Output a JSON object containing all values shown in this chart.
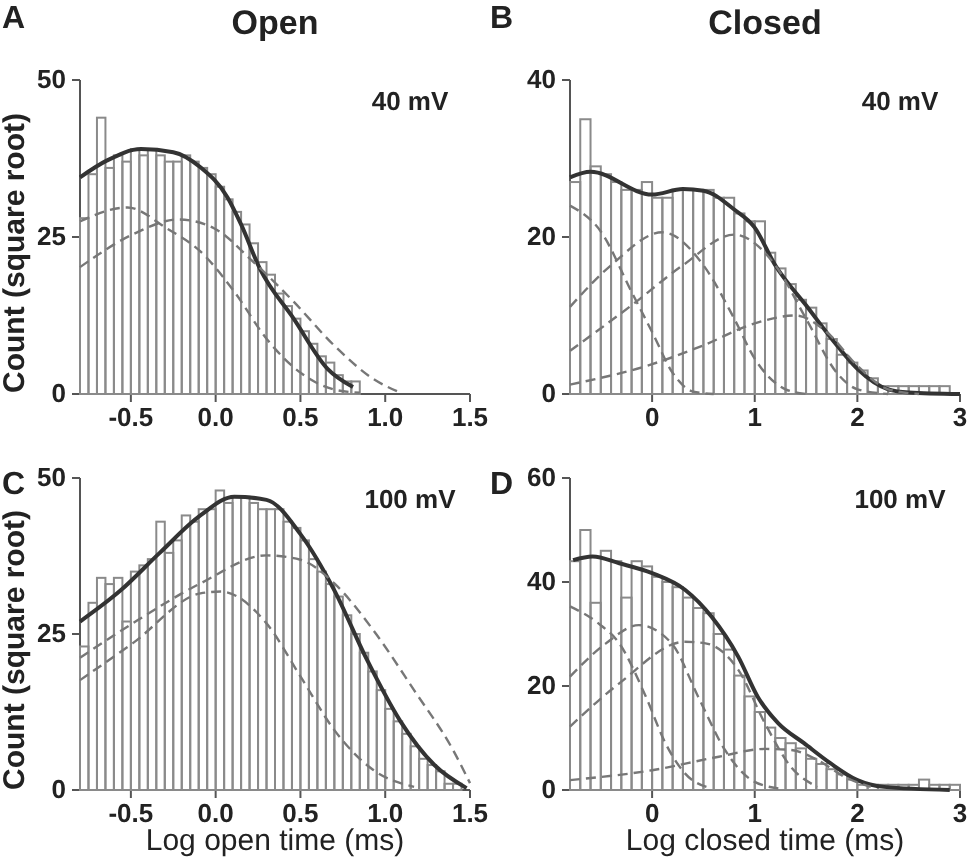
{
  "chart_data": [
    {
      "type": "histogram",
      "title": "Open",
      "ylabel": "Count (square root)",
      "annotations": [
        "A",
        "40 mV"
      ],
      "xlim": [
        -0.8,
        1.5
      ],
      "xticks": [
        {
          "value": -0.5,
          "label": "-0.5"
        },
        {
          "value": 0,
          "label": "0.0"
        },
        {
          "value": 0.5,
          "label": "0.5"
        },
        {
          "value": 1,
          "label": "1.0"
        },
        {
          "value": 1.5,
          "label": "1.5"
        }
      ],
      "ylim": [
        0,
        50
      ],
      "yticks": [
        0,
        25,
        50
      ],
      "color": "#8a8a8a",
      "bins": [
        -0.8,
        -0.75,
        -0.7,
        -0.65,
        -0.6,
        -0.55,
        -0.5,
        -0.45,
        -0.4,
        -0.35,
        -0.3,
        -0.25,
        -0.2,
        -0.15,
        -0.1,
        -0.05,
        0,
        0.05,
        0.1,
        0.15,
        0.2,
        0.25,
        0.3,
        0.35,
        0.4,
        0.45,
        0.5,
        0.55,
        0.6,
        0.65,
        0.7,
        0.75,
        0.8,
        0.85
      ],
      "values": [
        28,
        35,
        44,
        36,
        38,
        37,
        39,
        38,
        39,
        38,
        37,
        37,
        38,
        37,
        36,
        35,
        33,
        31,
        29,
        27,
        24,
        21,
        19,
        16,
        14,
        12,
        10,
        8,
        6,
        5,
        3,
        2,
        2
      ],
      "series": [
        {
          "type": "line",
          "color": "#333333",
          "line_style": "solid",
          "x": [
            -0.8,
            -0.64,
            -0.44,
            -0.25,
            -0.09,
            0.07,
            0.15,
            0.26,
            0.46,
            0.66,
            0.81
          ],
          "values": [
            34.5,
            37.2,
            39,
            38.5,
            36.1,
            31.3,
            27,
            20,
            12,
            4,
            1.1
          ]
        },
        {
          "type": "line",
          "color": "#777777",
          "line_style": "dashed",
          "x": [
            -0.8,
            -0.52,
            -0.29,
            -0.09,
            0.11,
            0.3,
            0.5,
            0.7,
            0.85
          ],
          "values": [
            27.5,
            29.7,
            26.4,
            22.7,
            16.3,
            8.8,
            3.4,
            0.7,
            0.2
          ]
        },
        {
          "type": "line",
          "color": "#777777",
          "line_style": "dashed",
          "x": [
            -0.8,
            -0.49,
            -0.22,
            -0.01,
            0.22,
            0.46,
            0.7,
            0.93,
            1.09
          ],
          "values": [
            20.2,
            25.4,
            27.8,
            26.4,
            21.1,
            14.7,
            7.7,
            2.4,
            0.2
          ]
        }
      ]
    },
    {
      "type": "histogram",
      "title": "Closed",
      "annotations": [
        "B",
        "40 mV"
      ],
      "xlim": [
        -0.8,
        3
      ],
      "xticks": [
        0,
        1,
        2,
        3
      ],
      "ylim": [
        0,
        40
      ],
      "yticks": [
        0,
        20,
        40
      ],
      "color": "#8a8a8a",
      "bins": [
        -0.8,
        -0.7,
        -0.6,
        -0.5,
        -0.4,
        -0.3,
        -0.2,
        -0.1,
        0,
        0.1,
        0.2,
        0.3,
        0.4,
        0.5,
        0.6,
        0.7,
        0.8,
        0.9,
        1,
        1.1,
        1.2,
        1.3,
        1.4,
        1.5,
        1.6,
        1.7,
        1.8,
        1.9,
        2,
        2.1,
        2.2,
        2.3,
        2.4,
        2.5,
        2.6,
        2.7,
        2.8,
        2.9,
        3
      ],
      "values": [
        27,
        35,
        29,
        28,
        27,
        26,
        26,
        27,
        25,
        25,
        26,
        26,
        26,
        26,
        25,
        25,
        23,
        22,
        22,
        18,
        16,
        14,
        12,
        11,
        9,
        7,
        5,
        4,
        3,
        2,
        1,
        1,
        1,
        1,
        1,
        1,
        1,
        0
      ],
      "series": [
        {
          "type": "line",
          "color": "#333333",
          "line_style": "solid",
          "x": [
            -0.8,
            -0.6,
            0,
            0.3,
            0.5,
            0.8,
            1,
            1.2,
            1.5,
            1.8,
            2,
            2.3,
            2.5,
            3
          ],
          "values": [
            27.6,
            28.3,
            25.4,
            26.1,
            25.9,
            23.5,
            21.2,
            16.4,
            11.3,
            6.2,
            3.2,
            0.6,
            0.2,
            0
          ]
        },
        {
          "type": "line",
          "color": "#777777",
          "line_style": "dashed",
          "x": [
            -0.8,
            -0.5,
            -0.2,
            0,
            0.2,
            0.4,
            0.6
          ],
          "values": [
            24,
            20.7,
            13,
            7.9,
            2.7,
            0.3,
            0
          ]
        },
        {
          "type": "line",
          "color": "#777777",
          "line_style": "dashed",
          "x": [
            -0.8,
            -0.4,
            0.1,
            0.5,
            0.8,
            1,
            1.3,
            1.5
          ],
          "values": [
            11.1,
            16.4,
            20.6,
            16.4,
            9.6,
            4.5,
            0.6,
            0
          ]
        },
        {
          "type": "line",
          "color": "#777777",
          "line_style": "dashed",
          "x": [
            -0.8,
            -0.2,
            0.3,
            0.8,
            1.2,
            1.5,
            1.8,
            2,
            2.3
          ],
          "values": [
            5.5,
            11.3,
            16.4,
            20.3,
            16.4,
            9.6,
            2.7,
            0.6,
            0
          ]
        },
        {
          "type": "line",
          "color": "#777777",
          "line_style": "dashed",
          "x": [
            -0.8,
            0,
            0.5,
            1,
            1.4,
            1.7,
            2,
            2.3,
            2.6
          ],
          "values": [
            1.2,
            3.8,
            6.2,
            9,
            10,
            7.9,
            3.6,
            0.6,
            0
          ]
        }
      ]
    },
    {
      "type": "histogram",
      "xlabel": "Log open time (ms)",
      "ylabel": "Count (square root)",
      "annotations": [
        "C",
        "100 mV"
      ],
      "xlim": [
        -0.8,
        1.5
      ],
      "xticks": [
        {
          "value": -0.5,
          "label": "-0.5"
        },
        {
          "value": 0,
          "label": "0.0"
        },
        {
          "value": 0.5,
          "label": "0.5"
        },
        {
          "value": 1,
          "label": "1.0"
        },
        {
          "value": 1.5,
          "label": "1.5"
        }
      ],
      "ylim": [
        0,
        50
      ],
      "yticks": [
        0,
        25,
        50
      ],
      "color": "#8a8a8a",
      "bins": [
        -0.8,
        -0.75,
        -0.7,
        -0.65,
        -0.6,
        -0.55,
        -0.5,
        -0.45,
        -0.4,
        -0.35,
        -0.3,
        -0.25,
        -0.2,
        -0.15,
        -0.1,
        -0.05,
        0,
        0.05,
        0.1,
        0.15,
        0.2,
        0.25,
        0.3,
        0.35,
        0.4,
        0.45,
        0.5,
        0.55,
        0.6,
        0.65,
        0.7,
        0.75,
        0.8,
        0.85,
        0.9,
        0.95,
        1,
        1.05,
        1.1,
        1.15,
        1.2,
        1.25,
        1.3,
        1.35,
        1.4,
        1.45,
        1.5
      ],
      "values": [
        23,
        30,
        34,
        33,
        34,
        27,
        35,
        36,
        37,
        43,
        38,
        40,
        44,
        43,
        45,
        45,
        48,
        46,
        47,
        47,
        46,
        45,
        45,
        45,
        43,
        42,
        40,
        37,
        35,
        33,
        31,
        28,
        25,
        22,
        19,
        16,
        13,
        11,
        9,
        7,
        5,
        4,
        3,
        1,
        1,
        0
      ],
      "series": [
        {
          "type": "line",
          "color": "#333333",
          "line_style": "solid",
          "x": [
            -0.8,
            -0.56,
            -0.33,
            -0.09,
            0.11,
            0.3,
            0.5,
            0.7,
            0.89,
            1.09,
            1.29,
            1.48
          ],
          "values": [
            27,
            32,
            38,
            44,
            47,
            46.5,
            41,
            32,
            21,
            11,
            4,
            0.3
          ]
        },
        {
          "type": "line",
          "color": "#777777",
          "line_style": "dashed",
          "x": [
            -0.8,
            -0.49,
            -0.09,
            0.03,
            0.3,
            0.5,
            0.7,
            0.93,
            1.17
          ],
          "values": [
            17.6,
            23.5,
            31.5,
            31.8,
            26.7,
            18.2,
            9.6,
            3.2,
            0.5
          ]
        },
        {
          "type": "line",
          "color": "#777777",
          "line_style": "dashed",
          "x": [
            -0.8,
            -0.49,
            -0.09,
            0.3,
            0.5,
            0.7,
            0.93,
            1.17,
            1.4,
            1.5
          ],
          "values": [
            21.2,
            26.7,
            33.1,
            37.6,
            36.9,
            33.1,
            25.6,
            16,
            6.4,
            1.1
          ]
        }
      ]
    },
    {
      "type": "histogram",
      "xlabel": "Log closed time (ms)",
      "annotations": [
        "D",
        "100 mV"
      ],
      "xlim": [
        -0.8,
        3
      ],
      "xticks": [
        0,
        1,
        2,
        3
      ],
      "ylim": [
        0,
        60
      ],
      "yticks": [
        0,
        20,
        40,
        60
      ],
      "color": "#8a8a8a",
      "bins": [
        -0.8,
        -0.7,
        -0.6,
        -0.5,
        -0.4,
        -0.3,
        -0.2,
        -0.1,
        0,
        0.1,
        0.2,
        0.3,
        0.4,
        0.5,
        0.6,
        0.7,
        0.8,
        0.9,
        1,
        1.1,
        1.2,
        1.3,
        1.4,
        1.5,
        1.6,
        1.7,
        1.8,
        1.9,
        2,
        2.1,
        2.2,
        2.3,
        2.4,
        2.5,
        2.6,
        2.7,
        2.8,
        2.9,
        3
      ],
      "values": [
        44,
        50,
        36,
        46,
        44,
        37,
        44,
        43,
        41,
        40,
        39,
        37,
        35,
        34,
        30,
        27,
        22,
        18,
        15,
        12,
        10,
        9,
        8,
        6,
        5,
        4,
        3,
        2,
        1,
        1,
        1,
        1,
        1,
        1,
        2,
        1,
        1,
        1
      ],
      "series": [
        {
          "type": "line",
          "color": "#333333",
          "line_style": "solid",
          "x": [
            -0.77,
            -0.58,
            -0.32,
            0,
            0.32,
            0.58,
            0.84,
            1.03,
            1.23,
            1.48,
            1.74,
            2,
            2.26,
            2.9
          ],
          "values": [
            44.2,
            44.9,
            43.6,
            41.7,
            38.5,
            33.3,
            25.6,
            17.9,
            12.8,
            9,
            5.1,
            1.9,
            0.6,
            0
          ]
        },
        {
          "type": "line",
          "color": "#777777",
          "line_style": "dashed",
          "x": [
            -0.8,
            -0.52,
            -0.32,
            -0.06,
            0.13,
            0.32,
            0.58
          ],
          "values": [
            35.3,
            32,
            28.2,
            17.9,
            9,
            3.2,
            0.3
          ]
        },
        {
          "type": "line",
          "color": "#777777",
          "line_style": "dashed",
          "x": [
            -0.8,
            -0.45,
            -0.13,
            0.19,
            0.45,
            0.71,
            0.97,
            1.23
          ],
          "values": [
            21.8,
            28.2,
            31.7,
            28.2,
            17.9,
            7.7,
            1.9,
            0.3
          ]
        },
        {
          "type": "line",
          "color": "#777777",
          "line_style": "dashed",
          "x": [
            -0.8,
            -0.32,
            0.32,
            0.52,
            0.84,
            1.1,
            1.35,
            1.61
          ],
          "values": [
            12.2,
            20.5,
            28.5,
            28.2,
            23.1,
            12.8,
            4.5,
            0.6
          ]
        },
        {
          "type": "line",
          "color": "#777777",
          "line_style": "dashed",
          "x": [
            -0.8,
            0,
            0.65,
            1.1,
            1.35,
            1.61,
            1.87,
            2.13
          ],
          "values": [
            1.9,
            3.8,
            6.4,
            7.9,
            7.7,
            5.8,
            2.6,
            0.6
          ]
        }
      ]
    }
  ]
}
